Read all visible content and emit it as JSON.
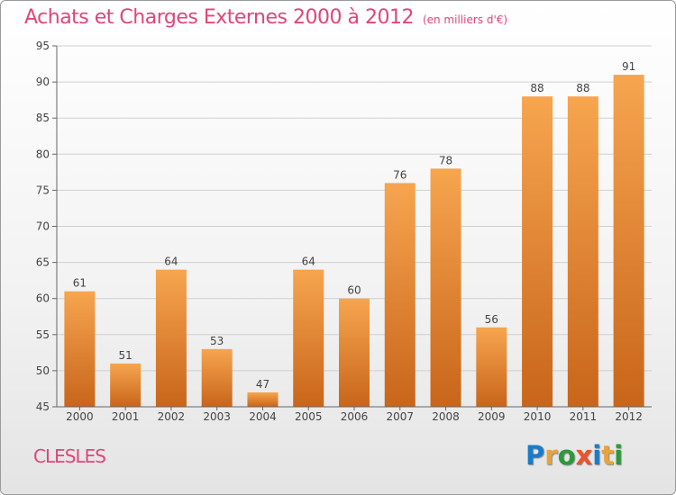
{
  "header": {
    "title": "Achats et Charges Externes 2000 à 2012",
    "subtitle": "(en milliers d'€)"
  },
  "footer": {
    "commune": "CLESLES",
    "logo_text": "Proxiti"
  },
  "colors": {
    "title": "#e0457b",
    "bar_top": "#f7a54f",
    "bar_bottom": "#c8651a",
    "logo_letters": [
      "#1a7bc8",
      "#e8a33c",
      "#2a9a3a",
      "#e8552c",
      "#1a7bc8",
      "#e8a33c",
      "#2a9a3a"
    ]
  },
  "chart_data": {
    "type": "bar",
    "title": "Achats et Charges Externes 2000 à 2012",
    "subtitle": "(en milliers d'€)",
    "xlabel": "",
    "ylabel": "",
    "categories": [
      "2000",
      "2001",
      "2002",
      "2003",
      "2004",
      "2005",
      "2006",
      "2007",
      "2008",
      "2009",
      "2010",
      "2011",
      "2012"
    ],
    "values": [
      61,
      51,
      64,
      53,
      47,
      64,
      60,
      76,
      78,
      56,
      88,
      88,
      91
    ],
    "ylim": [
      45,
      95
    ],
    "yticks": [
      45,
      50,
      55,
      60,
      65,
      70,
      75,
      80,
      85,
      90,
      95
    ],
    "grid": true
  }
}
